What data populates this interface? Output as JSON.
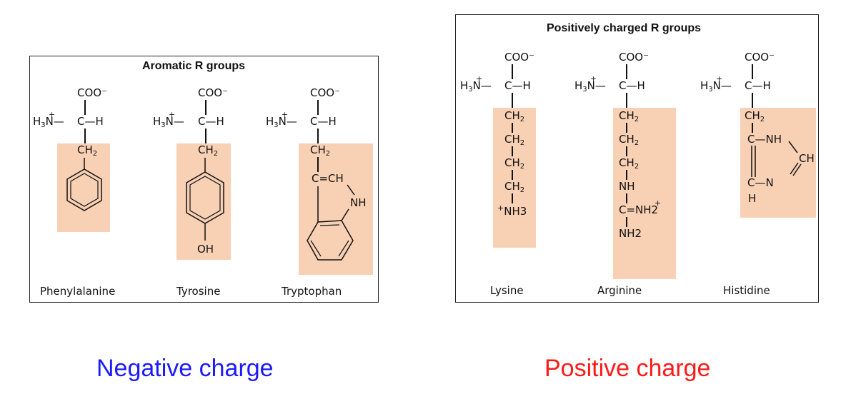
{
  "left_panel": {
    "title": "Aromatic R groups",
    "molecules": [
      {
        "name": "Phenylalanine"
      },
      {
        "name": "Tyrosine",
        "substituent": "OH"
      },
      {
        "name": "Tryptophan",
        "ring_labels": {
          "ch": "C=CH",
          "nh": "NH"
        }
      }
    ]
  },
  "right_panel": {
    "title": "Positively charged R groups",
    "molecules": [
      {
        "name": "Lysine",
        "terminal": "NH3"
      },
      {
        "name": "Arginine",
        "nh": "NH",
        "cnh2": "C=NH2",
        "nh2": "NH2"
      },
      {
        "name": "Histidine",
        "c_nh": "C—NH",
        "ch": "CH",
        "c_n": "C—N",
        "h": "H"
      }
    ]
  },
  "labels": {
    "coo": "COO⁻",
    "h3n": "H₃N",
    "c_h": "C—H",
    "ch2": "CH₂"
  },
  "captions": {
    "left": "Negative charge",
    "right": "Positive charge"
  },
  "colors": {
    "highlight": "#f8d0b4",
    "negative_caption": "#1a1aff",
    "positive_caption": "#ff1a1a"
  }
}
